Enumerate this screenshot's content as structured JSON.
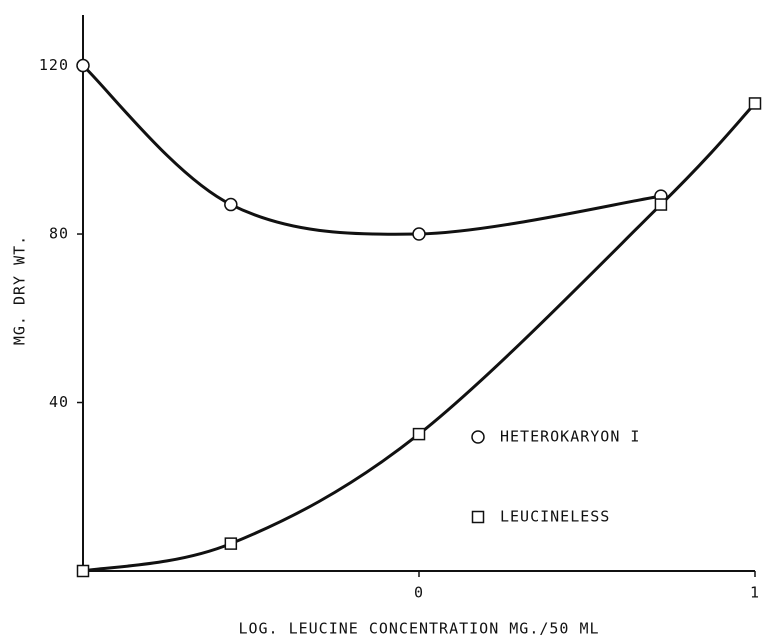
{
  "chart_data": {
    "type": "line",
    "xlabel": "LOG. LEUCINE CONCENTRATION MG./50 ML",
    "ylabel": "MG. DRY WT.",
    "xlim": [
      -1,
      1
    ],
    "xticks": [
      0,
      1
    ],
    "ylim": [
      0,
      132
    ],
    "yticks": [
      40,
      80,
      120
    ],
    "legend": "center right",
    "series": [
      {
        "name": "HETEROKARYON I",
        "marker": "circle",
        "color": "#111111",
        "x": [
          -1,
          -0.56,
          0,
          0.72
        ],
        "values": [
          120,
          87,
          80,
          89
        ]
      },
      {
        "name": "LEUCINELESS",
        "marker": "square",
        "color": "#111111",
        "x": [
          -1,
          -0.56,
          0,
          0.72,
          1
        ],
        "values": [
          0,
          6.5,
          32.5,
          87,
          111
        ]
      }
    ]
  }
}
